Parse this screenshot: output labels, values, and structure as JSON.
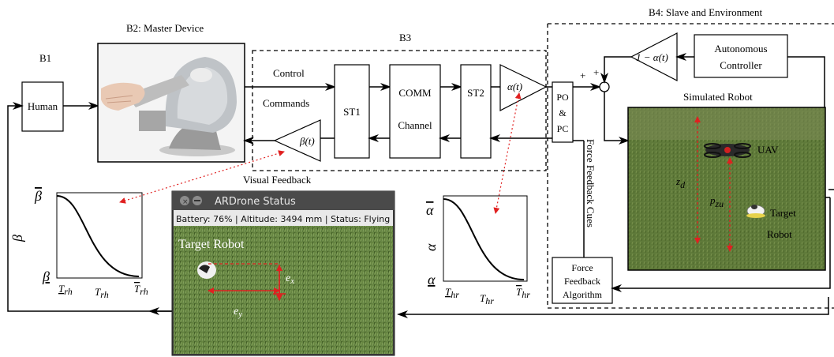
{
  "blocks": {
    "b1": "B1",
    "b2": "B2: Master Device",
    "b3": "B3",
    "b4": "B4: Slave and Environment"
  },
  "human": "Human",
  "signals": {
    "control": "Control",
    "commands": "Commands",
    "visual_feedback": "Visual Feedback",
    "force_feedback_cues": "Force Feedback Cues"
  },
  "comm": {
    "st1": "ST1",
    "comm_line1": "COMM",
    "comm_line2": "Channel",
    "st2": "ST2"
  },
  "gains": {
    "alpha": "α(t)",
    "beta": "β(t)",
    "one_minus_alpha": "1 − α(t)"
  },
  "po_pc": {
    "line1": "PO",
    "line2": "&",
    "line3": "PC"
  },
  "sum_signs": {
    "a": "+",
    "b": "+"
  },
  "autonomous": {
    "line1": "Autonomous",
    "line2": "Controller"
  },
  "simulated_robot": {
    "title": "Simulated Robot",
    "uav": "UAV",
    "target_line1": "Target",
    "target_line2": "Robot",
    "zd": "z",
    "zd_sub": "d",
    "pzu": "p",
    "pzu_sub": "zu"
  },
  "force_algo": {
    "line1": "Force",
    "line2": "Feedback",
    "line3": "Algorithm"
  },
  "ardrone": {
    "title": "ARDrone Status",
    "status": "Battery: 76% | Altitude: 3494 mm | Status: Flying",
    "target_robot": "Target Robot",
    "ex": "e",
    "ex_sub": "x",
    "ey": "e",
    "ey_sub": "y"
  },
  "beta_plot": {
    "ylabel": "β",
    "ymax": "β",
    "ymin": "β",
    "x_left": "T",
    "x_left_sub": "rh",
    "x_mid": "T",
    "x_mid_sub": "rh",
    "x_right": "T",
    "x_right_sub": "rh"
  },
  "alpha_plot": {
    "ylabel": "α",
    "ymax": "α",
    "ymin": "α",
    "x_left": "T",
    "x_left_sub": "hr",
    "x_mid": "T",
    "x_mid_sub": "hr",
    "x_right": "T",
    "x_right_sub": "hr"
  },
  "colors": {
    "red_dashed": "#e02020",
    "grass": "#5e7d3c",
    "box_outline": "#000000"
  }
}
